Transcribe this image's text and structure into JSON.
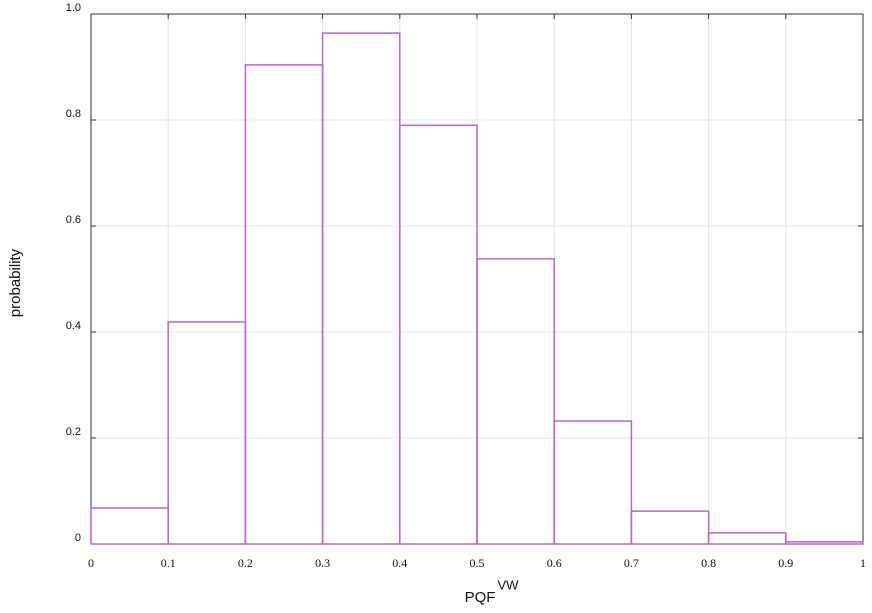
{
  "chart_data": {
    "type": "histogram",
    "xlabel": {
      "text": "PQF",
      "superscript": "VW"
    },
    "ylabel": "probability",
    "bins": [
      0,
      0.1,
      0.2,
      0.3,
      0.4,
      0.5,
      0.6,
      0.7,
      0.8,
      0.9,
      1
    ],
    "values": [
      0.068,
      0.419,
      0.904,
      0.964,
      0.79,
      0.538,
      0.232,
      0.062,
      0.021,
      0.004
    ],
    "color": "#b565d1",
    "xlim": [
      0,
      1
    ],
    "ylim": [
      0,
      1
    ],
    "xticks": [
      0,
      0.1,
      0.2,
      0.3,
      0.4,
      0.5,
      0.6,
      0.7,
      0.8,
      0.9,
      1
    ],
    "yticks": [
      0,
      0.2,
      0.4,
      0.6,
      0.8,
      {
        "value": 1,
        "label": "1.0"
      }
    ],
    "grid": true
  }
}
